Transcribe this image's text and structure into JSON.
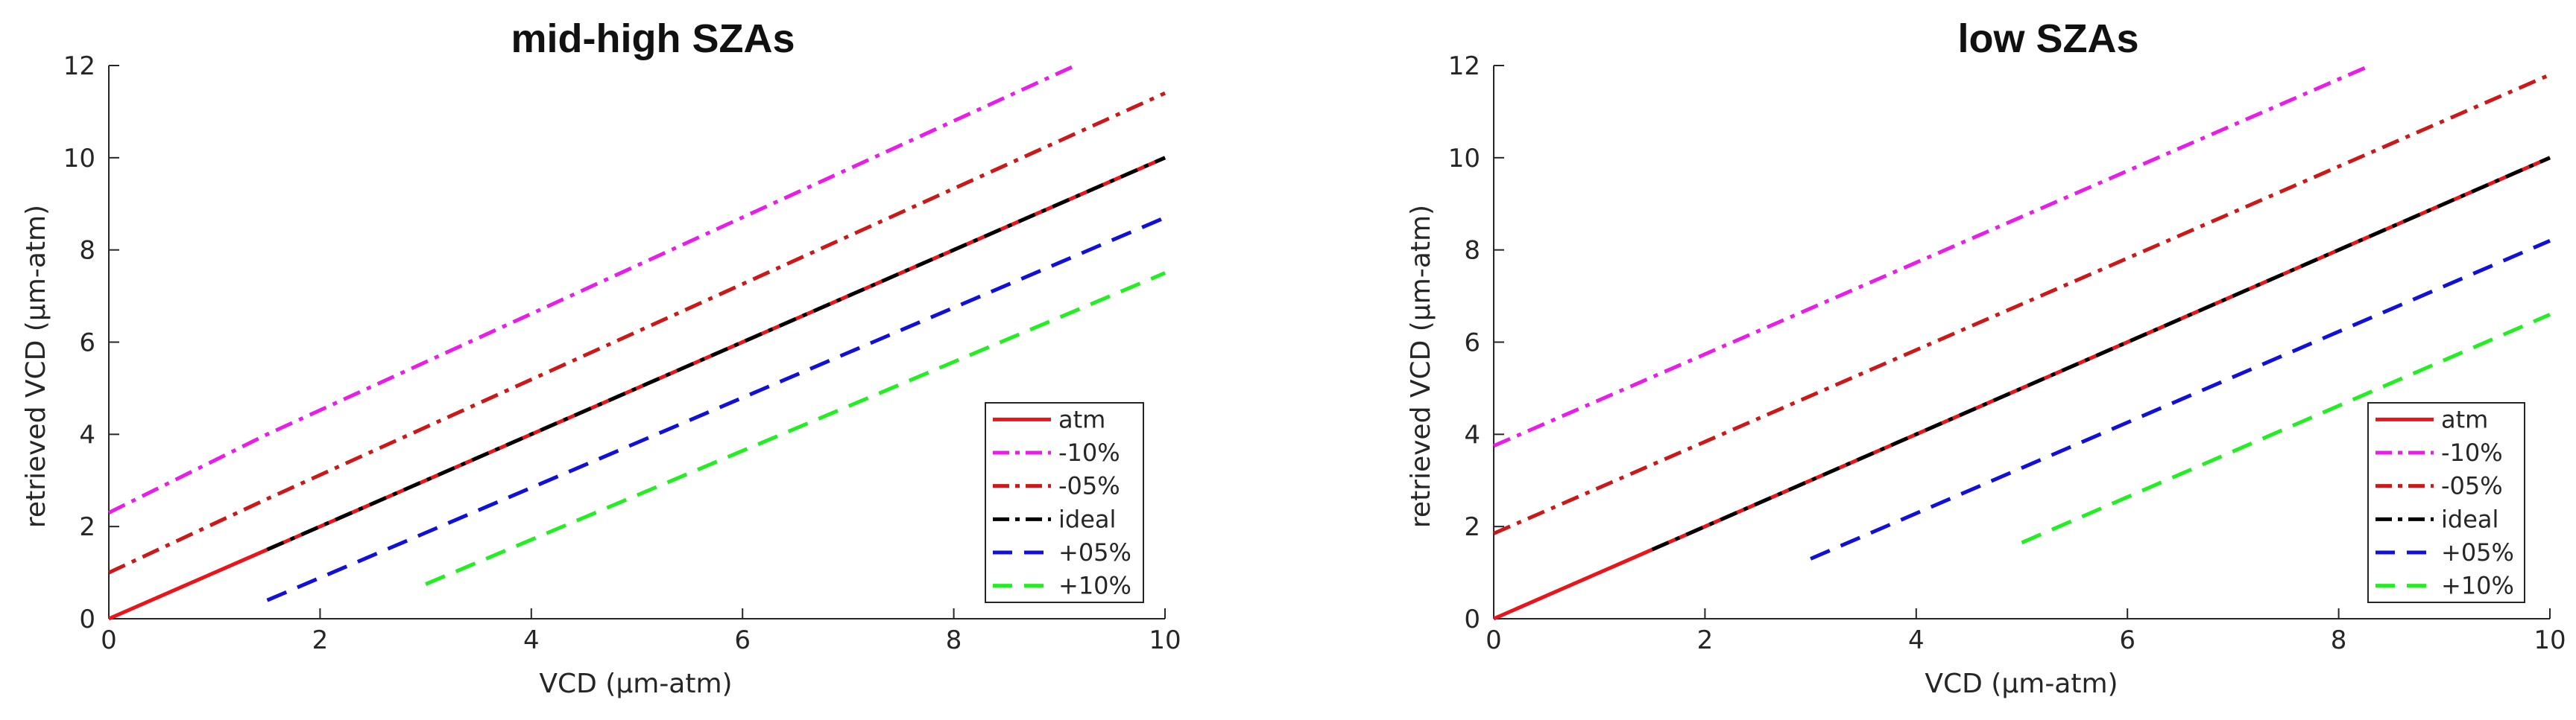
{
  "chart_data": [
    {
      "type": "line",
      "title": "mid-high SZAs",
      "xlabel": "VCD (μm-atm)",
      "ylabel": "retrieved VCD (μm-atm)",
      "xlim": [
        0,
        10
      ],
      "ylim": [
        0,
        12
      ],
      "xticks": [
        "0",
        "2",
        "4",
        "6",
        "8",
        "10"
      ],
      "yticks": [
        "0",
        "2",
        "4",
        "6",
        "8",
        "10",
        "12"
      ],
      "grid": false,
      "legend_position": "bottom-right",
      "series": [
        {
          "name": "atm",
          "color": "#e8161b",
          "dash": "solid",
          "x": [
            0,
            10
          ],
          "y": [
            0,
            10
          ]
        },
        {
          "name": "-10%",
          "color": "#e81ee8",
          "dash": "dashdot",
          "x": [
            0,
            1.5,
            9.15
          ],
          "y": [
            2.3,
            4.0,
            12.0
          ]
        },
        {
          "name": "-05%",
          "color": "#cc1818",
          "dash": "dashdot",
          "x": [
            0,
            1.5,
            10
          ],
          "y": [
            1.0,
            2.6,
            11.4
          ]
        },
        {
          "name": "ideal",
          "color": "#000000",
          "dash": "dashdot",
          "x": [
            1.5,
            10
          ],
          "y": [
            1.5,
            10
          ]
        },
        {
          "name": "+05%",
          "color": "#1010d8",
          "dash": "dashed",
          "x": [
            1.5,
            10
          ],
          "y": [
            0.4,
            8.7
          ]
        },
        {
          "name": "+10%",
          "color": "#22ee22",
          "dash": "dashed",
          "x": [
            3,
            10
          ],
          "y": [
            0.75,
            7.5
          ]
        }
      ]
    },
    {
      "type": "line",
      "title": "low SZAs",
      "xlabel": "VCD (μm-atm)",
      "ylabel": "retrieved VCD (μm-atm)",
      "xlim": [
        0,
        10
      ],
      "ylim": [
        0,
        12
      ],
      "xticks": [
        "0",
        "2",
        "4",
        "6",
        "8",
        "10"
      ],
      "yticks": [
        "0",
        "2",
        "4",
        "6",
        "8",
        "10",
        "12"
      ],
      "grid": false,
      "legend_position": "bottom-right",
      "series": [
        {
          "name": "atm",
          "color": "#e8161b",
          "dash": "solid",
          "x": [
            0,
            10
          ],
          "y": [
            0,
            10
          ]
        },
        {
          "name": "-10%",
          "color": "#e81ee8",
          "dash": "dashdot",
          "x": [
            0,
            8.3
          ],
          "y": [
            3.75,
            12.0
          ]
        },
        {
          "name": "-05%",
          "color": "#cc1818",
          "dash": "dashdot",
          "x": [
            0,
            10
          ],
          "y": [
            1.85,
            11.8
          ]
        },
        {
          "name": "ideal",
          "color": "#000000",
          "dash": "dashdot",
          "x": [
            1.5,
            10
          ],
          "y": [
            1.5,
            10
          ]
        },
        {
          "name": "+05%",
          "color": "#1010d8",
          "dash": "dashed",
          "x": [
            3,
            10
          ],
          "y": [
            1.3,
            8.2
          ]
        },
        {
          "name": "+10%",
          "color": "#22ee22",
          "dash": "dashed",
          "x": [
            5,
            10
          ],
          "y": [
            1.65,
            6.6
          ]
        }
      ]
    }
  ]
}
